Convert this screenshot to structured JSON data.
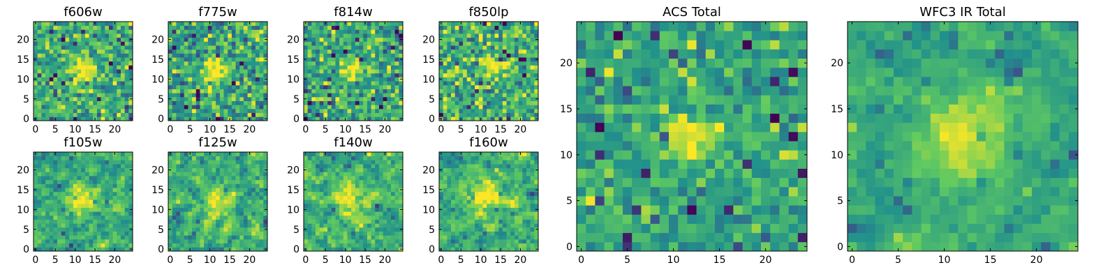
{
  "figure": {
    "background": "#ffffff"
  },
  "colormap": {
    "name": "viridis",
    "stops": [
      "#440154",
      "#3b528b",
      "#21918c",
      "#5ec962",
      "#fde725"
    ]
  },
  "chart_data": [
    {
      "type": "heatmap",
      "title": "f606w",
      "grid": [
        25,
        25
      ],
      "xlim": [
        0,
        24
      ],
      "ylim": [
        0,
        24
      ],
      "xticks": [
        "0",
        "5",
        "10",
        "15",
        "20"
      ],
      "yticks": [
        "0",
        "5",
        "10",
        "15",
        "20"
      ],
      "source_center": [
        12,
        12
      ],
      "source_peak": 1.0,
      "source_width": 2.0,
      "noise": 0.18,
      "baseline": 0.62,
      "smooth": 0,
      "seed": 11
    },
    {
      "type": "heatmap",
      "title": "f775w",
      "grid": [
        25,
        25
      ],
      "xlim": [
        0,
        24
      ],
      "ylim": [
        0,
        24
      ],
      "xticks": [
        "0",
        "5",
        "10",
        "15",
        "20"
      ],
      "yticks": [
        "0",
        "5",
        "10",
        "15",
        "20"
      ],
      "source_center": [
        11,
        12
      ],
      "source_peak": 0.9,
      "source_width": 2.2,
      "noise": 0.2,
      "baseline": 0.6,
      "smooth": 0,
      "seed": 23
    },
    {
      "type": "heatmap",
      "title": "f814w",
      "grid": [
        25,
        25
      ],
      "xlim": [
        0,
        24
      ],
      "ylim": [
        0,
        24
      ],
      "xticks": [
        "0",
        "5",
        "10",
        "15",
        "20"
      ],
      "yticks": [
        "0",
        "5",
        "10",
        "15",
        "20"
      ],
      "source_center": [
        12,
        12
      ],
      "source_peak": 0.95,
      "source_width": 2.0,
      "noise": 0.2,
      "baseline": 0.6,
      "smooth": 0,
      "seed": 37
    },
    {
      "type": "heatmap",
      "title": "f850lp",
      "grid": [
        25,
        25
      ],
      "xlim": [
        0,
        24
      ],
      "ylim": [
        0,
        24
      ],
      "xticks": [
        "0",
        "5",
        "10",
        "15",
        "20"
      ],
      "yticks": [
        "0",
        "5",
        "10",
        "15",
        "20"
      ],
      "source_center": [
        13,
        13
      ],
      "source_peak": 0.7,
      "source_width": 2.5,
      "noise": 0.2,
      "baseline": 0.62,
      "smooth": 0,
      "seed": 41
    },
    {
      "type": "heatmap",
      "title": "f105w",
      "grid": [
        25,
        25
      ],
      "xlim": [
        0,
        24
      ],
      "ylim": [
        0,
        24
      ],
      "xticks": [
        "0",
        "5",
        "10",
        "15",
        "20"
      ],
      "yticks": [
        "0",
        "5",
        "10",
        "15",
        "20"
      ],
      "source_center": [
        12,
        12
      ],
      "source_peak": 0.7,
      "source_width": 3.0,
      "noise": 0.22,
      "baseline": 0.62,
      "smooth": 1,
      "seed": 53
    },
    {
      "type": "heatmap",
      "title": "f125w",
      "grid": [
        25,
        25
      ],
      "xlim": [
        0,
        24
      ],
      "ylim": [
        0,
        24
      ],
      "xticks": [
        "0",
        "5",
        "10",
        "15",
        "20"
      ],
      "yticks": [
        "0",
        "5",
        "10",
        "15",
        "20"
      ],
      "source_center": [
        12,
        11
      ],
      "source_peak": 0.75,
      "source_width": 3.0,
      "noise": 0.22,
      "baseline": 0.62,
      "smooth": 1,
      "seed": 67
    },
    {
      "type": "heatmap",
      "title": "f140w",
      "grid": [
        25,
        25
      ],
      "xlim": [
        0,
        24
      ],
      "ylim": [
        0,
        24
      ],
      "xticks": [
        "0",
        "5",
        "10",
        "15",
        "20"
      ],
      "yticks": [
        "0",
        "5",
        "10",
        "15",
        "20"
      ],
      "source_center": [
        12,
        13
      ],
      "source_peak": 0.8,
      "source_width": 3.0,
      "noise": 0.22,
      "baseline": 0.64,
      "smooth": 1,
      "seed": 71
    },
    {
      "type": "heatmap",
      "title": "f160w",
      "grid": [
        25,
        25
      ],
      "xlim": [
        0,
        24
      ],
      "ylim": [
        0,
        24
      ],
      "xticks": [
        "0",
        "5",
        "10",
        "15",
        "20"
      ],
      "yticks": [
        "0",
        "5",
        "10",
        "15",
        "20"
      ],
      "source_center": [
        12,
        13
      ],
      "source_peak": 0.75,
      "source_width": 3.2,
      "noise": 0.22,
      "baseline": 0.64,
      "smooth": 1,
      "seed": 89
    },
    {
      "type": "heatmap",
      "title": "ACS Total",
      "grid": [
        25,
        25
      ],
      "xlim": [
        0,
        24
      ],
      "ylim": [
        0,
        24
      ],
      "xticks": [
        "0",
        "5",
        "10",
        "15",
        "20"
      ],
      "yticks": [
        "0",
        "5",
        "10",
        "15",
        "20"
      ],
      "source_center": [
        12,
        12
      ],
      "source_peak": 1.0,
      "source_width": 1.8,
      "noise": 0.14,
      "baseline": 0.58,
      "smooth": 0,
      "seed": 97
    },
    {
      "type": "heatmap",
      "title": "WFC3 IR Total",
      "grid": [
        25,
        25
      ],
      "xlim": [
        0,
        24
      ],
      "ylim": [
        0,
        24
      ],
      "xticks": [
        "0",
        "5",
        "10",
        "15",
        "20"
      ],
      "yticks": [
        "0",
        "5",
        "10",
        "15",
        "20"
      ],
      "source_center": [
        12,
        12
      ],
      "source_peak": 0.85,
      "source_width": 3.5,
      "noise": 0.14,
      "baseline": 0.6,
      "smooth": 1,
      "seed": 103
    }
  ]
}
